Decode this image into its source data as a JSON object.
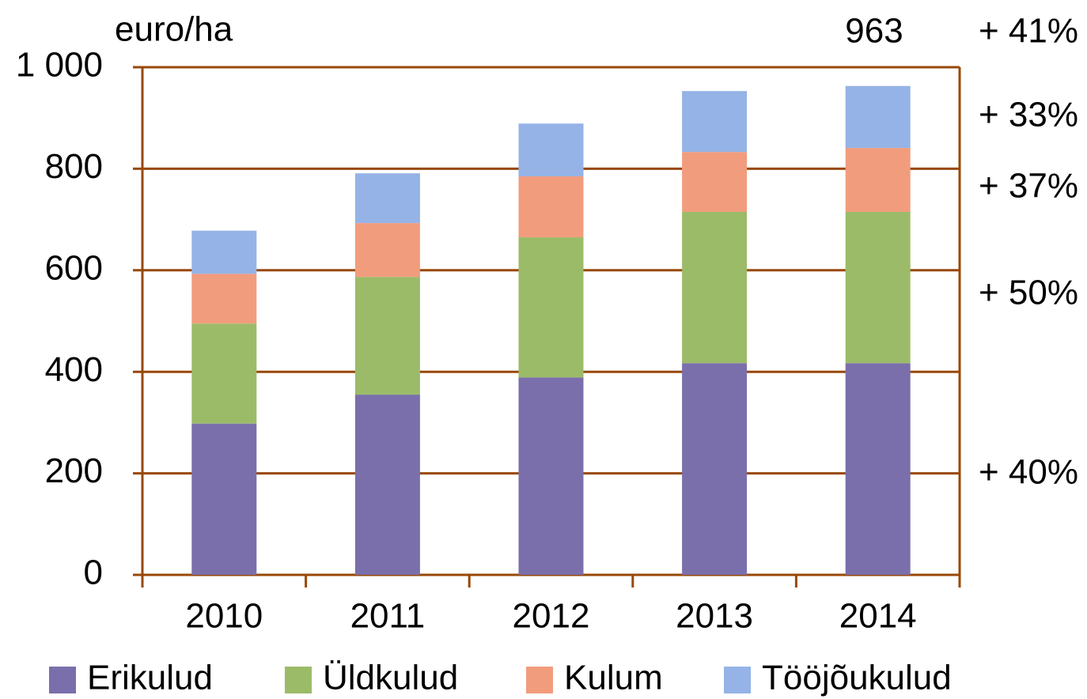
{
  "chart_data": {
    "type": "stacked_bar",
    "y_axis_label": "euro/ha",
    "categories": [
      "2010",
      "2011",
      "2012",
      "2013",
      "2014"
    ],
    "series": [
      {
        "name": "Erikulud",
        "color": "#7a6fab",
        "values": [
          298,
          355,
          389,
          417,
          417
        ]
      },
      {
        "name": "Üldkulud",
        "color": "#9bbb69",
        "values": [
          197,
          232,
          276,
          298,
          298
        ]
      },
      {
        "name": "Kulum",
        "color": "#f29c7e",
        "values": [
          98,
          106,
          120,
          118,
          126
        ]
      },
      {
        "name": "Tööjõukulud",
        "color": "#95b3e6",
        "values": [
          85,
          98,
          104,
          120,
          122
        ]
      }
    ],
    "ylim": [
      0,
      1000
    ],
    "yticks": [
      0,
      200,
      400,
      600,
      800,
      {
        "value": 1000,
        "label": "1 000"
      }
    ],
    "grid": true,
    "legend": "bottom",
    "annotations": [
      "963",
      "+ 41%",
      "+ 33%",
      "+ 37%",
      "+ 50%",
      "+ 40%"
    ]
  }
}
